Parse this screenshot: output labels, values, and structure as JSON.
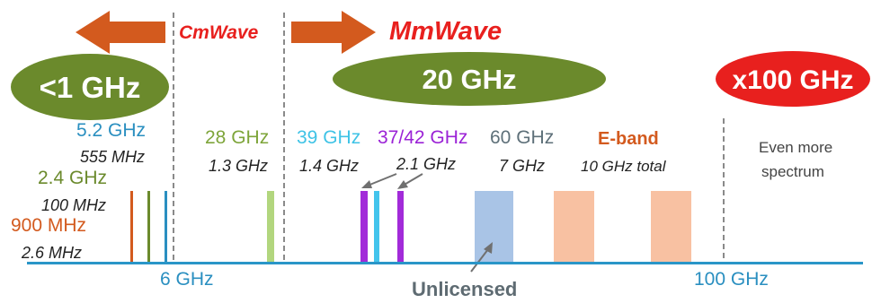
{
  "header": {
    "cmwave_label": "CmWave",
    "mmwave_label": "MmWave"
  },
  "bands": {
    "lt1ghz": "<1 GHz",
    "ghz20": "20 GHz",
    "x100ghz": "x100 GHz"
  },
  "sub6": {
    "freq_5_2": "5.2 GHz",
    "bw_555": "555 MHz",
    "freq_2_4": "2.4 GHz",
    "bw_100": "100 MHz",
    "freq_900": "900 MHz",
    "bw_2_6": "2.6 MHz"
  },
  "mm": {
    "freq_28": "28 GHz",
    "bw_28": "1.3 GHz",
    "freq_39": "39 GHz",
    "bw_39": "1.4 GHz",
    "freq_37_42": "37/42 GHz",
    "bw_37_42": "2.1 GHz",
    "freq_60": "60 GHz",
    "bw_60": "7 GHz",
    "eband": "E-band",
    "bw_eband": "10 GHz total"
  },
  "beyond": {
    "line1": "Even more",
    "line2": "spectrum"
  },
  "axis": {
    "tick_6": "6 GHz",
    "tick_100": "100 GHz",
    "unlicensed": "Unlicensed"
  },
  "colors": {
    "orange": "#d35a1e",
    "red": "#e8201e",
    "olive": "#6b8a2c",
    "blue_text": "#2a8fc0",
    "light_green_text": "#7ea53a",
    "cyan_text": "#3fc3e6",
    "purple": "#9b22d6",
    "gray_text": "#5e7079",
    "axis_blue": "#2a96c8",
    "bar_green": "#b2d67e",
    "bar_purple": "#a22bd9",
    "bar_cyan": "#43c4ec",
    "bar_lightblue": "#a9c4e6",
    "bar_peach": "#f8c1a2",
    "dashed": "#8a8a8a"
  },
  "icons": {
    "left_arrow": "left-arrow-icon",
    "right_arrow": "right-arrow-icon"
  }
}
